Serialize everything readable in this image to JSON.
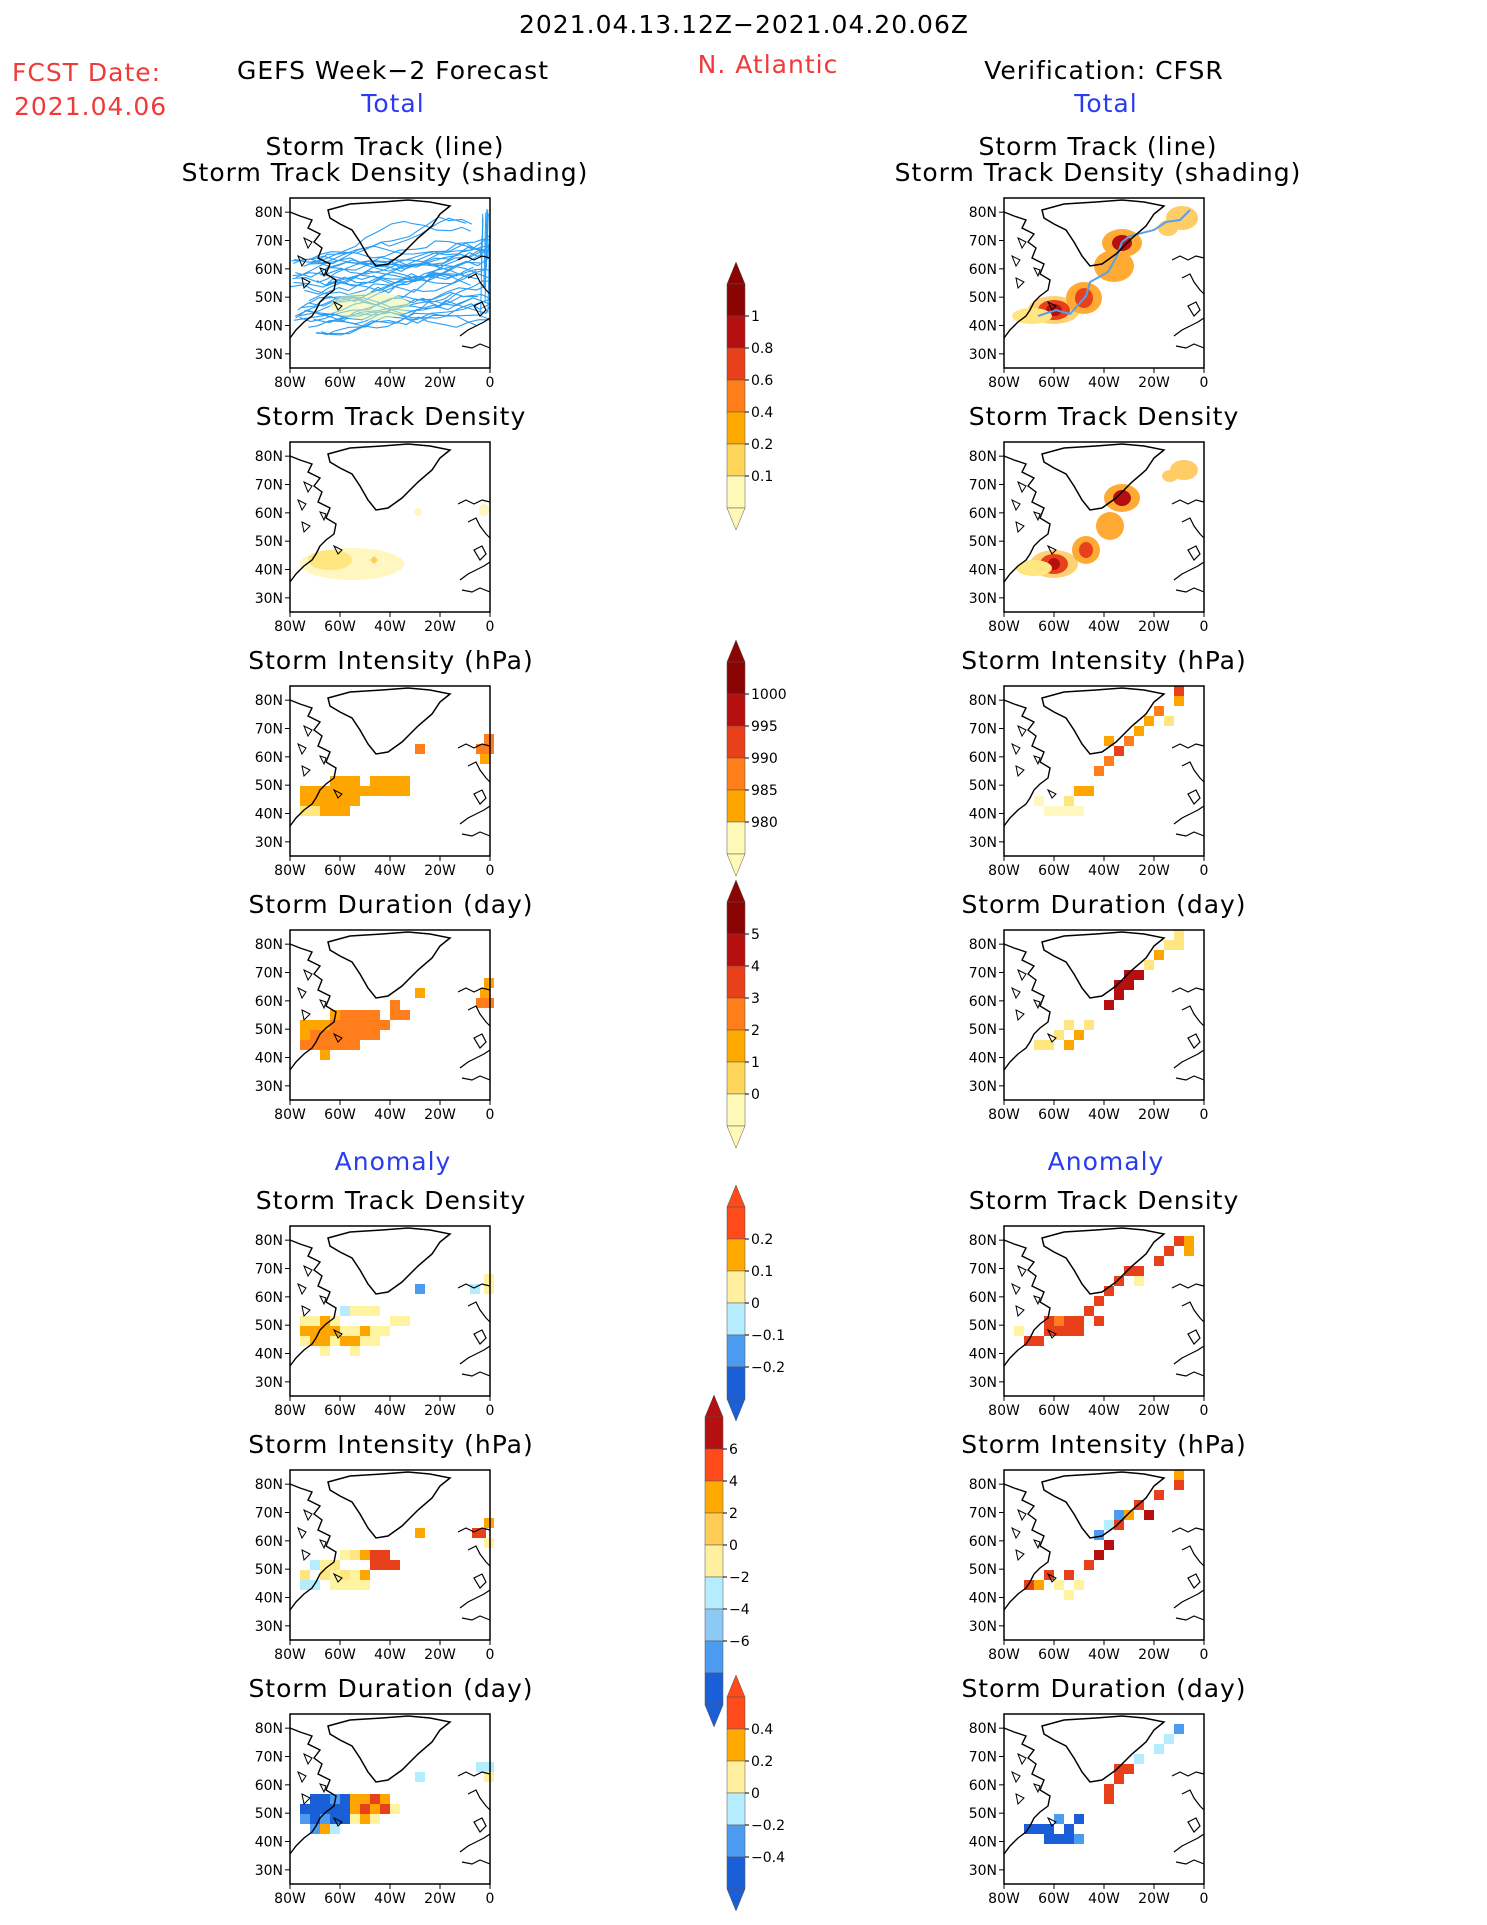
{
  "header": {
    "date_range": "2021.04.13.12Z−2021.04.20.06Z",
    "fcst_label": "FCST Date:",
    "fcst_date": "2021.04.06",
    "left_title": "GEFS Week−2 Forecast",
    "region": "N. Atlantic",
    "right_title": "Verification: CFSR"
  },
  "sections": {
    "total": "Total",
    "anomaly": "Anomaly"
  },
  "panel_titles": {
    "track_line": "Storm Track (line)",
    "track_shading": "Storm Track Density (shading)",
    "density": "Storm Track Density",
    "intensity": "Storm Intensity (hPa)",
    "duration": "Storm Duration (day)"
  },
  "axes": {
    "lat_labels": [
      "80N",
      "70N",
      "60N",
      "50N",
      "40N",
      "30N"
    ],
    "lon_labels": [
      "80W",
      "60W",
      "40W",
      "20W",
      "0"
    ]
  },
  "colorbars": {
    "density_total": {
      "labels": [
        "1",
        "0.8",
        "0.6",
        "0.4",
        "0.2",
        "0.1"
      ],
      "colors": [
        "#fff9b8",
        "#ffd65a",
        "#ffaa00",
        "#ff7d1a",
        "#e8401a",
        "#b50f0f",
        "#8a0404"
      ]
    },
    "intensity_total": {
      "labels": [
        "1000",
        "995",
        "990",
        "985",
        "980"
      ],
      "colors": [
        "#fff9b8",
        "#ffa500",
        "#ff7d1a",
        "#e8401a",
        "#b50f0f",
        "#8a0404"
      ]
    },
    "duration_total": {
      "labels": [
        "5",
        "4",
        "3",
        "2",
        "1",
        "0"
      ],
      "colors": [
        "#fff9b8",
        "#ffd65a",
        "#ffaa00",
        "#ff7d1a",
        "#e8401a",
        "#b50f0f",
        "#8a0404"
      ]
    },
    "density_anom": {
      "labels": [
        "0.2",
        "0.1",
        "0",
        "−0.1",
        "−0.2"
      ],
      "colors": [
        "#1a5fd8",
        "#4b9bf0",
        "#b5ecff",
        "#fff0a0",
        "#ffaa00",
        "#ff4a1a"
      ]
    },
    "intensity_anom": {
      "labels": [
        "6",
        "4",
        "2",
        "0",
        "−2",
        "−4",
        "−6"
      ],
      "colors": [
        "#1a5fd8",
        "#4b9bf0",
        "#8ccaf5",
        "#b5ecff",
        "#fff0a0",
        "#ffcc55",
        "#ffaa00",
        "#ff4a1a",
        "#b50f0f"
      ]
    },
    "duration_anom": {
      "labels": [
        "0.4",
        "0.2",
        "0",
        "−0.2",
        "−0.4"
      ],
      "colors": [
        "#1a5fd8",
        "#4b9bf0",
        "#b5ecff",
        "#fff0a0",
        "#ffaa00",
        "#ff4a1a"
      ]
    }
  },
  "colors": {
    "track_gefs": "#2a9df4",
    "track_cfsr": "#5aa0e8"
  }
}
